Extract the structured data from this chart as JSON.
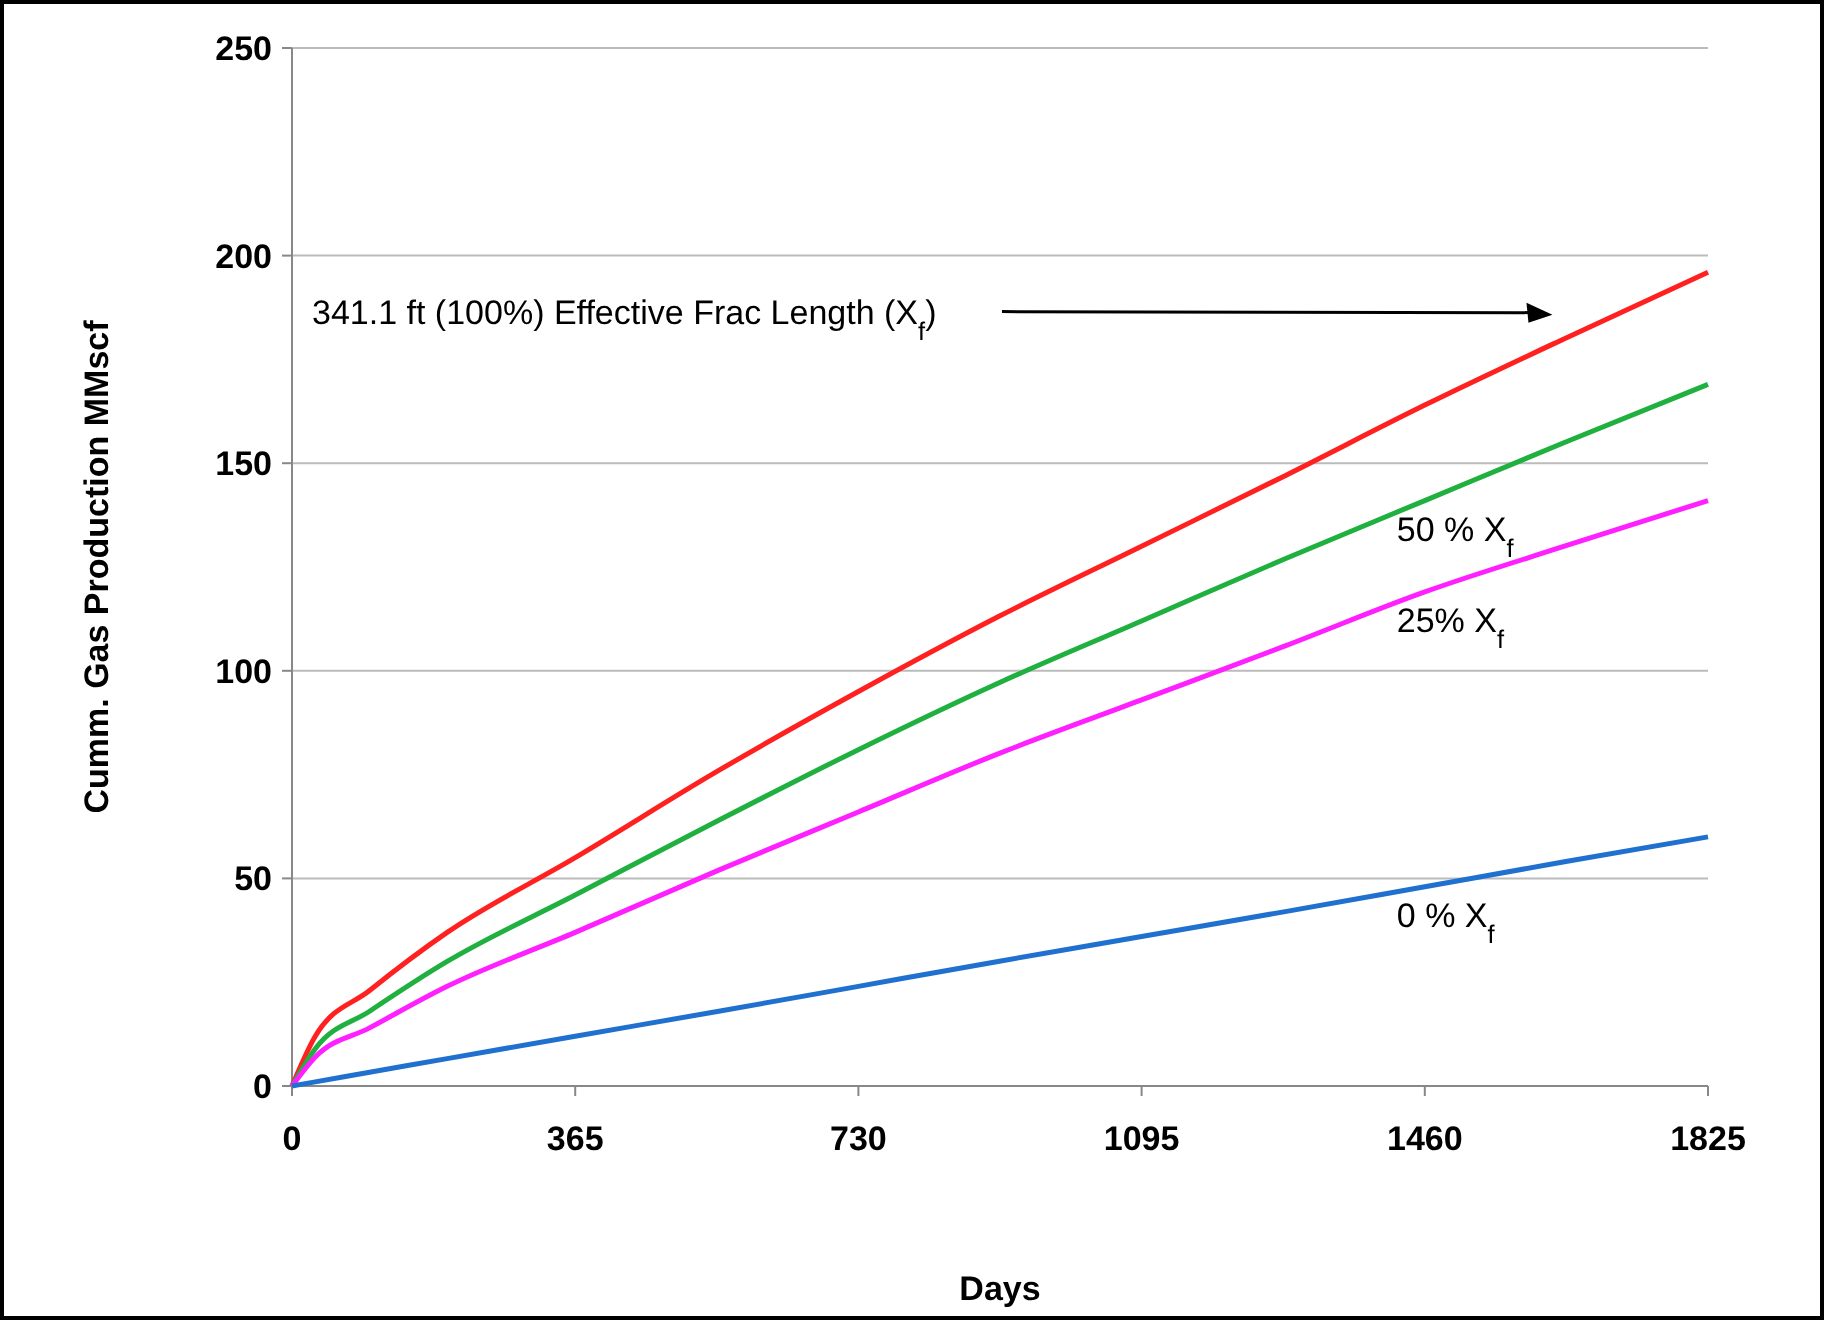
{
  "chart_data": {
    "type": "line",
    "xlabel": "Days",
    "ylabel": "Cumm. Gas Production  MMscf",
    "x": [
      0,
      30,
      100,
      200,
      365,
      550,
      730,
      910,
      1095,
      1280,
      1460,
      1640,
      1825
    ],
    "series": [
      {
        "color": "#ff2020",
        "values": [
          0,
          12,
          23,
          37,
          55,
          76,
          95,
          113,
          130,
          147,
          164,
          180,
          196
        ]
      },
      {
        "color": "#20b040",
        "values": [
          0,
          9,
          18,
          30,
          46,
          64,
          81,
          97,
          112,
          127,
          141,
          155,
          169
        ]
      },
      {
        "color": "#ff20ff",
        "values": [
          0,
          7,
          14,
          24,
          37,
          52,
          66,
          80,
          93,
          106,
          119,
          130,
          141
        ]
      },
      {
        "color": "#2070d0",
        "values": [
          0,
          1,
          3.3,
          6.6,
          12,
          18,
          24,
          30,
          36,
          42,
          48,
          54,
          60
        ]
      }
    ],
    "xlim": [
      0,
      1825
    ],
    "xticks": [
      0,
      365,
      730,
      1095,
      1460,
      1825
    ],
    "ylim": [
      0,
      250
    ],
    "yticks": [
      0,
      50,
      100,
      150,
      200,
      250
    ],
    "grid": "y",
    "marker": "none",
    "line_style": "solid",
    "annotations": [
      "341.1 ft (100%)  Effective Frac Length (X$_{f}$)",
      "50 % X$_{f}$",
      "25% X$_{f}$",
      "0 % X$_{f}$"
    ]
  }
}
